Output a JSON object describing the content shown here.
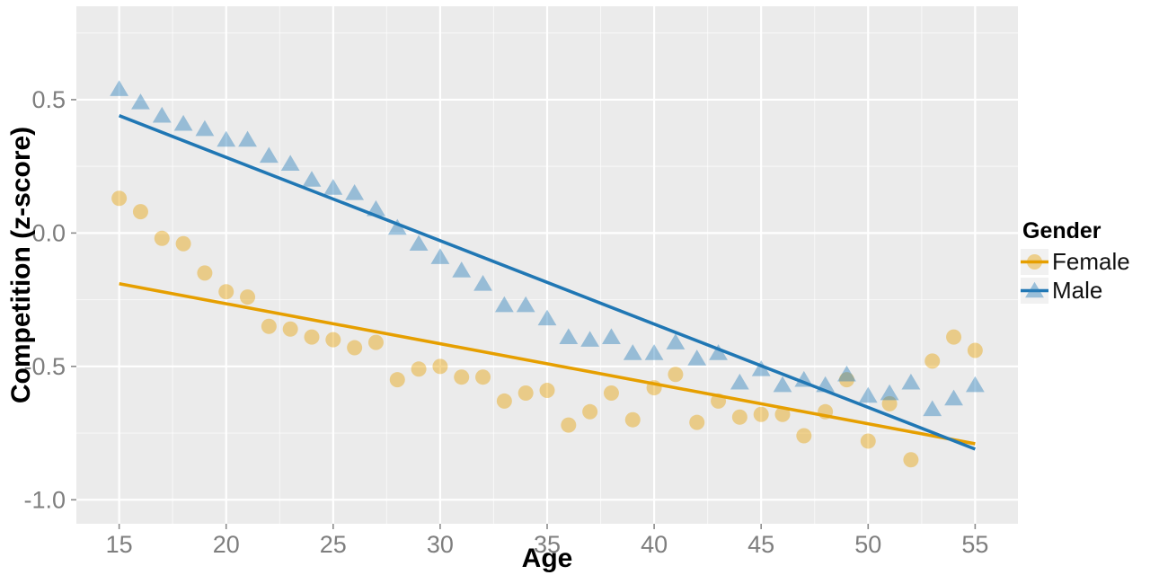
{
  "chart_data": {
    "type": "scatter",
    "title": "",
    "xlabel": "Age",
    "ylabel": "Competition (z-score)",
    "xlim": [
      13,
      57
    ],
    "ylim": [
      -1.09,
      0.85
    ],
    "x_ticks": [
      15,
      20,
      25,
      30,
      35,
      40,
      45,
      50,
      55
    ],
    "y_ticks": [
      0.5,
      0.0,
      -0.5,
      -1.0
    ],
    "y_tick_labels": [
      "0.5",
      "0.0",
      "-0.5",
      "-1.0"
    ],
    "grid": {
      "major": true,
      "minor": true
    },
    "style": {
      "panel_bg": "#EBEBEB",
      "grid_color": "#FFFFFF",
      "tick_mark_color": "#8C8C8C",
      "tick_label_color": "#7E7E7E",
      "legend_key_bg": "#F1F1F1"
    },
    "legend": {
      "title": "Gender",
      "position": "right",
      "entries": [
        {
          "label": "Female",
          "marker": "circle",
          "color": "#E69F00"
        },
        {
          "label": "Male",
          "marker": "triangle",
          "color": "#2077B4"
        }
      ]
    },
    "ages": [
      15,
      16,
      17,
      18,
      19,
      20,
      21,
      22,
      23,
      24,
      25,
      26,
      27,
      28,
      29,
      30,
      31,
      32,
      33,
      34,
      35,
      36,
      37,
      38,
      39,
      40,
      41,
      42,
      43,
      44,
      45,
      46,
      47,
      48,
      49,
      50,
      51,
      52,
      53,
      54,
      55
    ],
    "series": [
      {
        "name": "Female",
        "marker": "circle",
        "line_color": "#E69F00",
        "point_color_rgb": "230,159,0",
        "point_alpha": 0.42,
        "values": [
          0.13,
          0.08,
          -0.02,
          -0.04,
          -0.15,
          -0.22,
          -0.24,
          -0.35,
          -0.36,
          -0.39,
          -0.4,
          -0.43,
          -0.41,
          -0.55,
          -0.51,
          -0.5,
          -0.54,
          -0.54,
          -0.63,
          -0.6,
          -0.59,
          -0.72,
          -0.67,
          -0.6,
          -0.7,
          -0.58,
          -0.53,
          -0.71,
          -0.63,
          -0.69,
          -0.68,
          -0.68,
          -0.76,
          -0.67,
          -0.55,
          -0.78,
          -0.64,
          -0.85,
          -0.48,
          -0.39,
          -0.44
        ],
        "trend_line": {
          "x": [
            15,
            55
          ],
          "y": [
            -0.19,
            -0.79
          ]
        }
      },
      {
        "name": "Male",
        "marker": "triangle",
        "line_color": "#2077B4",
        "point_color_rgb": "49,130,189",
        "point_alpha": 0.45,
        "values": [
          0.54,
          0.49,
          0.44,
          0.41,
          0.39,
          0.35,
          0.35,
          0.29,
          0.26,
          0.2,
          0.17,
          0.15,
          0.09,
          0.02,
          -0.04,
          -0.09,
          -0.14,
          -0.19,
          -0.27,
          -0.27,
          -0.32,
          -0.39,
          -0.4,
          -0.39,
          -0.45,
          -0.45,
          -0.41,
          -0.47,
          -0.45,
          -0.56,
          -0.51,
          -0.57,
          -0.55,
          -0.57,
          -0.53,
          -0.61,
          -0.6,
          -0.56,
          -0.66,
          -0.62,
          -0.57
        ],
        "trend_line": {
          "x": [
            15,
            55
          ],
          "y": [
            0.44,
            -0.81
          ]
        }
      }
    ]
  }
}
